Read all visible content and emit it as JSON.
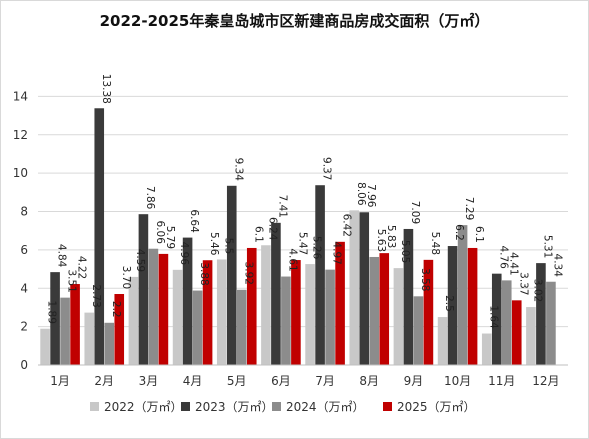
{
  "chart_data": {
    "type": "bar",
    "title": "2022-2025年秦皇岛城市区新建商品房成交面积（万㎡）",
    "xlabel": "",
    "ylabel": "",
    "ylim": [
      0,
      16
    ],
    "yticks": [
      0,
      2,
      4,
      6,
      8,
      10,
      12,
      14
    ],
    "grid": true,
    "legend_position": "bottom",
    "categories": [
      "1月",
      "2月",
      "3月",
      "4月",
      "5月",
      "6月",
      "7月",
      "8月",
      "9月",
      "10月",
      "11月",
      "12月"
    ],
    "series": [
      {
        "name": "2022（万㎡）",
        "color": "#c8c8c8",
        "values": [
          1.89,
          2.73,
          4.59,
          4.96,
          5.5,
          6.24,
          5.26,
          8.06,
          5.05,
          2.5,
          1.64,
          3.02
        ],
        "labels": [
          "1.89",
          "2.73",
          "4.59",
          "4.96",
          "5.5",
          "6.24",
          "5.26",
          "8.06",
          "5.05",
          "2.5",
          "1.64",
          "3.02"
        ]
      },
      {
        "name": "2023（万㎡）",
        "color": "#3a3a3a",
        "values": [
          4.84,
          13.38,
          7.86,
          6.64,
          9.34,
          7.41,
          9.37,
          7.96,
          7.09,
          6.2,
          4.76,
          5.31
        ],
        "labels": [
          "4.84",
          "13.38",
          "7.86",
          "6.64",
          "9.34",
          "7.41",
          "9.37",
          "7.96",
          "7.09",
          "6.2",
          "4.76",
          "5.31"
        ]
      },
      {
        "name": "2024（万㎡）",
        "color": "#8c8c8c",
        "values": [
          3.51,
          2.2,
          6.06,
          3.88,
          3.92,
          4.61,
          4.97,
          5.63,
          3.58,
          7.29,
          4.41,
          4.34
        ],
        "labels": [
          "3.51",
          "2.2",
          "6.06",
          "3.88",
          "3.92",
          "4.61",
          "4.97",
          "5.63",
          "3.58",
          "7.29",
          "4.41",
          "4.34"
        ]
      },
      {
        "name": "2025（万㎡）",
        "color": "#c00000",
        "values": [
          4.22,
          3.7,
          5.79,
          5.46,
          6.1,
          5.47,
          6.42,
          5.83,
          5.48,
          6.1,
          3.37,
          null
        ],
        "labels": [
          "4.22",
          "3.70",
          "5.79",
          "5.46",
          "6.1",
          "5.47",
          "6.42",
          "5.83",
          "5.48",
          "6.1",
          "3.37",
          null
        ]
      }
    ]
  }
}
